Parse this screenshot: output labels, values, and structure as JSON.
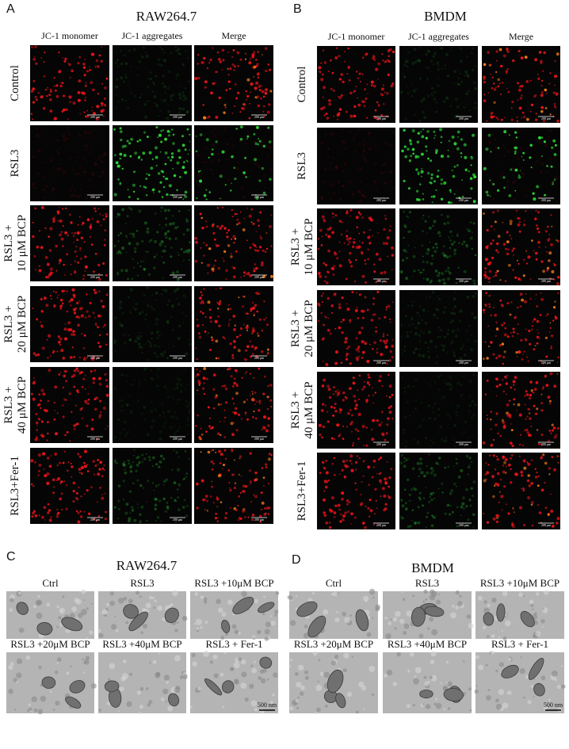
{
  "fluorescence_panels": [
    {
      "label": "A",
      "title": "RAW264.7",
      "columns": [
        "JC-1 monomer",
        "JC-1 aggregates",
        "Merge"
      ],
      "rows": [
        [
          "Control"
        ],
        [
          "RSL3"
        ],
        [
          "RSL3 +",
          "10 μM BCP"
        ],
        [
          "RSL3 +",
          "20 μM BCP"
        ],
        [
          "RSL3 +",
          "40 μM BCP"
        ],
        [
          "RSL3+Fer-1"
        ]
      ],
      "scale_bar": "200 μm"
    },
    {
      "label": "B",
      "title": "BMDM",
      "columns": [
        "JC-1 monomer",
        "JC-1 aggregates",
        "Merge"
      ],
      "rows": [
        [
          "Control"
        ],
        [
          "RSL3"
        ],
        [
          "RSL3 +",
          "10 μM BCP"
        ],
        [
          "RSL3 +",
          "20 μM BCP"
        ],
        [
          "RSL3 +",
          "40 μM BCP"
        ],
        [
          "RSL3+Fer-1"
        ]
      ],
      "scale_bar": "200 μm"
    }
  ],
  "tem_panels": [
    {
      "label": "C",
      "title": "RAW264.7",
      "images": [
        "Ctrl",
        "RSL3",
        "RSL3 +10μM BCP",
        "RSL3 +20μM BCP",
        "RSL3 +40μM BCP",
        "RSL3 + Fer-1"
      ],
      "scale_bar": "500 nm"
    },
    {
      "label": "D",
      "title": "BMDM",
      "images": [
        "Ctrl",
        "RSL3",
        "RSL3 +10μM BCP",
        "RSL3 +20μM BCP",
        "RSL3 +40μM BCP",
        "RSL3 + Fer-1"
      ],
      "scale_bar": "500 nm"
    }
  ]
}
